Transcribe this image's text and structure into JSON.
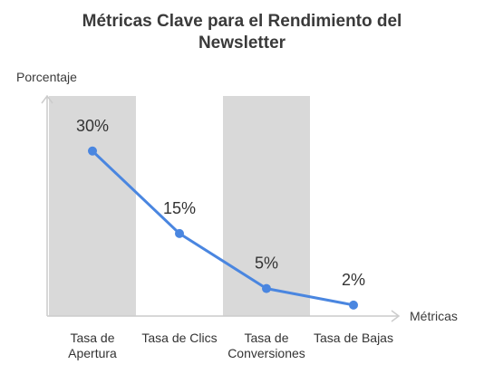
{
  "chart_data": {
    "type": "line",
    "title_lines": [
      "Métricas Clave para el Rendimiento del",
      "Newsletter"
    ],
    "xlabel": "Métricas",
    "ylabel": "Porcentaje",
    "categories": [
      [
        "Tasa de",
        "Apertura"
      ],
      [
        "Tasa de Clics"
      ],
      [
        "Tasa de",
        "Conversiones"
      ],
      [
        "Tasa de Bajas"
      ]
    ],
    "values": [
      30,
      15,
      5,
      2
    ],
    "value_labels": [
      "30%",
      "15%",
      "5%",
      "2%"
    ],
    "ylim": [
      0,
      40
    ],
    "grid": false,
    "legend": "none",
    "colors": {
      "line": "#4a86e0",
      "band": "#d9d9d9",
      "axis": "#cccccc"
    }
  }
}
